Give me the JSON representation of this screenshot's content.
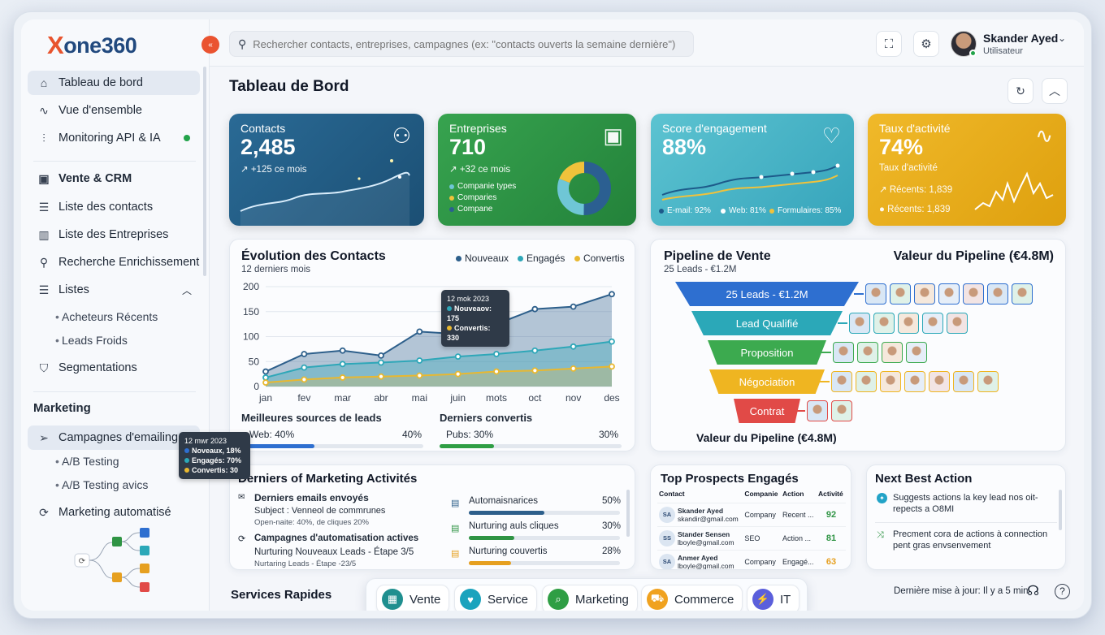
{
  "app": {
    "logo_x": "X",
    "logo_rest": "one360",
    "collapse_glyph": "«"
  },
  "sidebar": {
    "main": [
      {
        "label": "Tableau de bord",
        "icon": "home-icon",
        "active": true
      },
      {
        "label": "Vue d'ensemble",
        "icon": "activity-icon"
      },
      {
        "label": "Monitoring API & IA",
        "icon": "bar-chart-icon",
        "status_color": "#22a34a"
      }
    ],
    "crm_title": "Vente & CRM",
    "crm": [
      {
        "label": "Liste des contacts",
        "icon": "list-icon"
      },
      {
        "label": "Liste des Entreprises",
        "icon": "building-icon"
      },
      {
        "label": "Recherche Enrichissement",
        "icon": "search-icon"
      },
      {
        "label": "Listes",
        "icon": "list-icon"
      }
    ],
    "listes_sub": [
      "Acheteurs Récents",
      "Leads Froids"
    ],
    "segmentations": "Segmentations",
    "marketing_title": "Marketing",
    "campagnes": "Campagnes d'emailing",
    "campagnes_sub": [
      "A/B Testing",
      "A/B Testing avics"
    ],
    "automatise": "Marketing automatisé",
    "tooltip": {
      "date": "12 mwr 2023",
      "l1": "Noveaux, 18%",
      "l2": "Engagés: 70%",
      "l3": "Convertis: 30"
    }
  },
  "topbar": {
    "search_placeholder": "Rechercher contacts, entreprises, campagnes (ex: \"contacts ouverts la semaine dernière\")",
    "user_name": "Skander Ayed",
    "user_role": "Utilisateur"
  },
  "page": {
    "title": "Tableau de Bord"
  },
  "kpis": [
    {
      "title": "Contacts",
      "value": "2,485",
      "sub": "↗ +125 ce mois",
      "color": "#215d86",
      "icon": "users-icon"
    },
    {
      "title": "Entreprises",
      "value": "710",
      "sub": "↗ +32 ce mois",
      "color": "#2f9444",
      "icon": "briefcase-icon",
      "legend": [
        "Companie types",
        "Comparies",
        "Compane"
      ]
    },
    {
      "title": "Score d'engagement",
      "value": "88%",
      "color": "#46b2c4",
      "icon": "heart-icon",
      "legend": [
        "E-mail: 92%",
        "Web: 81%",
        "Formulaires: 85%"
      ]
    },
    {
      "title": "Taux d'activité",
      "value": "74%",
      "sub": "Taux d'activité",
      "color": "#e6aa17",
      "icon": "pulse-icon",
      "lines": [
        "↗ Récents: 1,839",
        "● Récents: 1,839"
      ]
    }
  ],
  "evolution": {
    "title": "Évolution des Contacts",
    "subtitle": "12 derniers mois",
    "legend": [
      "Nouveaux",
      "Engagés",
      "Convertis"
    ],
    "tooltip": {
      "date": "12 mok 2023",
      "l1": "Nouveaov: 175",
      "l2": "Convertis: 330"
    },
    "leads_title": "Meilleures sources de leads",
    "leads_label": "Web: 40%",
    "leads_pct": "40%",
    "leads_value": 0.4,
    "conv_title": "Derniers convertis",
    "conv_label": "Pubs: 30%",
    "conv_pct": "30%",
    "conv_value": 0.3
  },
  "chart_data": {
    "type": "area",
    "categories": [
      "jan",
      "fev",
      "mar",
      "abr",
      "mai",
      "juin",
      "mots",
      "oct",
      "nov",
      "des"
    ],
    "series": [
      {
        "name": "Nouveaux",
        "color": "#2d5f8b",
        "values": [
          30,
          65,
          72,
          62,
          110,
          105,
          125,
          155,
          160,
          185
        ]
      },
      {
        "name": "Engagés",
        "color": "#2ea7b8",
        "values": [
          18,
          38,
          45,
          48,
          52,
          60,
          65,
          72,
          80,
          90
        ]
      },
      {
        "name": "Convertis",
        "color": "#e8b830",
        "values": [
          8,
          14,
          18,
          20,
          22,
          25,
          30,
          32,
          36,
          40
        ]
      }
    ],
    "yticks": [
      0,
      50,
      100,
      150,
      200
    ],
    "ylim": [
      0,
      200
    ]
  },
  "pipeline": {
    "title": "Pipeline de Vente",
    "subtitle": "25 Leads - €1.2M",
    "value_title": "Valeur du Pipeline (€4.8M)",
    "bottom_label": "Valeur du Pipeline (€4.8M)",
    "stages": [
      {
        "label": "25 Leads - €1.2M",
        "color": "#2e6fd0",
        "count": 7
      },
      {
        "label": "Lead Qualifié",
        "color": "#2ba8b8",
        "count": 5
      },
      {
        "label": "Proposition",
        "color": "#3caa4f",
        "count": 4
      },
      {
        "label": "Négociation",
        "color": "#efb521",
        "count": 7
      },
      {
        "label": "Contrat",
        "color": "#e14a47",
        "count": 2
      }
    ]
  },
  "activities": {
    "title": "Derniers of Marketing Activités",
    "emails_title": "Derniers emails envoyés",
    "emails_subject": "Subject : Venneol de commrunes",
    "emails_stats": "Open-naite: 40%, de cliques 20%",
    "auto_title": "Campagnes d'automatisation actives",
    "auto_name": "Nurturing Nouveaux Leads - Étape 3/5",
    "auto_sub": "Nurtaring Leads - Étape -23/5",
    "bars": [
      {
        "label": "Automaisnarices",
        "pct": "50%",
        "value": 0.5,
        "color": "#2d5f8b"
      },
      {
        "label": "Nurturing auls cliques",
        "pct": "30%",
        "value": 0.3,
        "color": "#2f9444"
      },
      {
        "label": "Nurturing couvertis",
        "pct": "28%",
        "value": 0.28,
        "color": "#e6a020"
      }
    ]
  },
  "prospects": {
    "title": "Top Prospects Engagés",
    "headers": [
      "Contact",
      "Companie",
      "Action",
      "Activité"
    ],
    "rows": [
      {
        "initials": "SA",
        "name": "Skander Ayed",
        "email": "skandir@gmail.com",
        "company": "Company",
        "action": "Recent ...",
        "score": "92",
        "color": "#2f9444"
      },
      {
        "initials": "SS",
        "name": "Stander Sensen",
        "email": "lboyle@gmail.com",
        "company": "SEO",
        "action": "Action ...",
        "score": "81",
        "color": "#2f9444"
      },
      {
        "initials": "SA",
        "name": "Anmer Ayed",
        "email": "lboyle@gmail.com",
        "company": "Company",
        "action": "Engagé...",
        "score": "63",
        "color": "#e6a020"
      }
    ]
  },
  "nba": {
    "title": "Next Best Action",
    "item1": "Suggests actions la key lead nos oit-repects a O8MI",
    "item2": "Precment cora de actions à connection pent gras envsenvement"
  },
  "footer": {
    "services_title": "Services Rapides",
    "last_update": "Dernière mise à jour: Il y a 5 min"
  },
  "services": [
    {
      "label": "Vente",
      "color": "#1f8f8f",
      "glyph": "▦"
    },
    {
      "label": "Service",
      "color": "#1aa3bd",
      "glyph": "♥"
    },
    {
      "label": "Marketing",
      "color": "#2f9e44",
      "glyph": "⌕"
    },
    {
      "label": "Commerce",
      "color": "#f0a21f",
      "glyph": "⛟"
    },
    {
      "label": "IT",
      "color": "#5b5fdb",
      "glyph": "⚡"
    }
  ]
}
